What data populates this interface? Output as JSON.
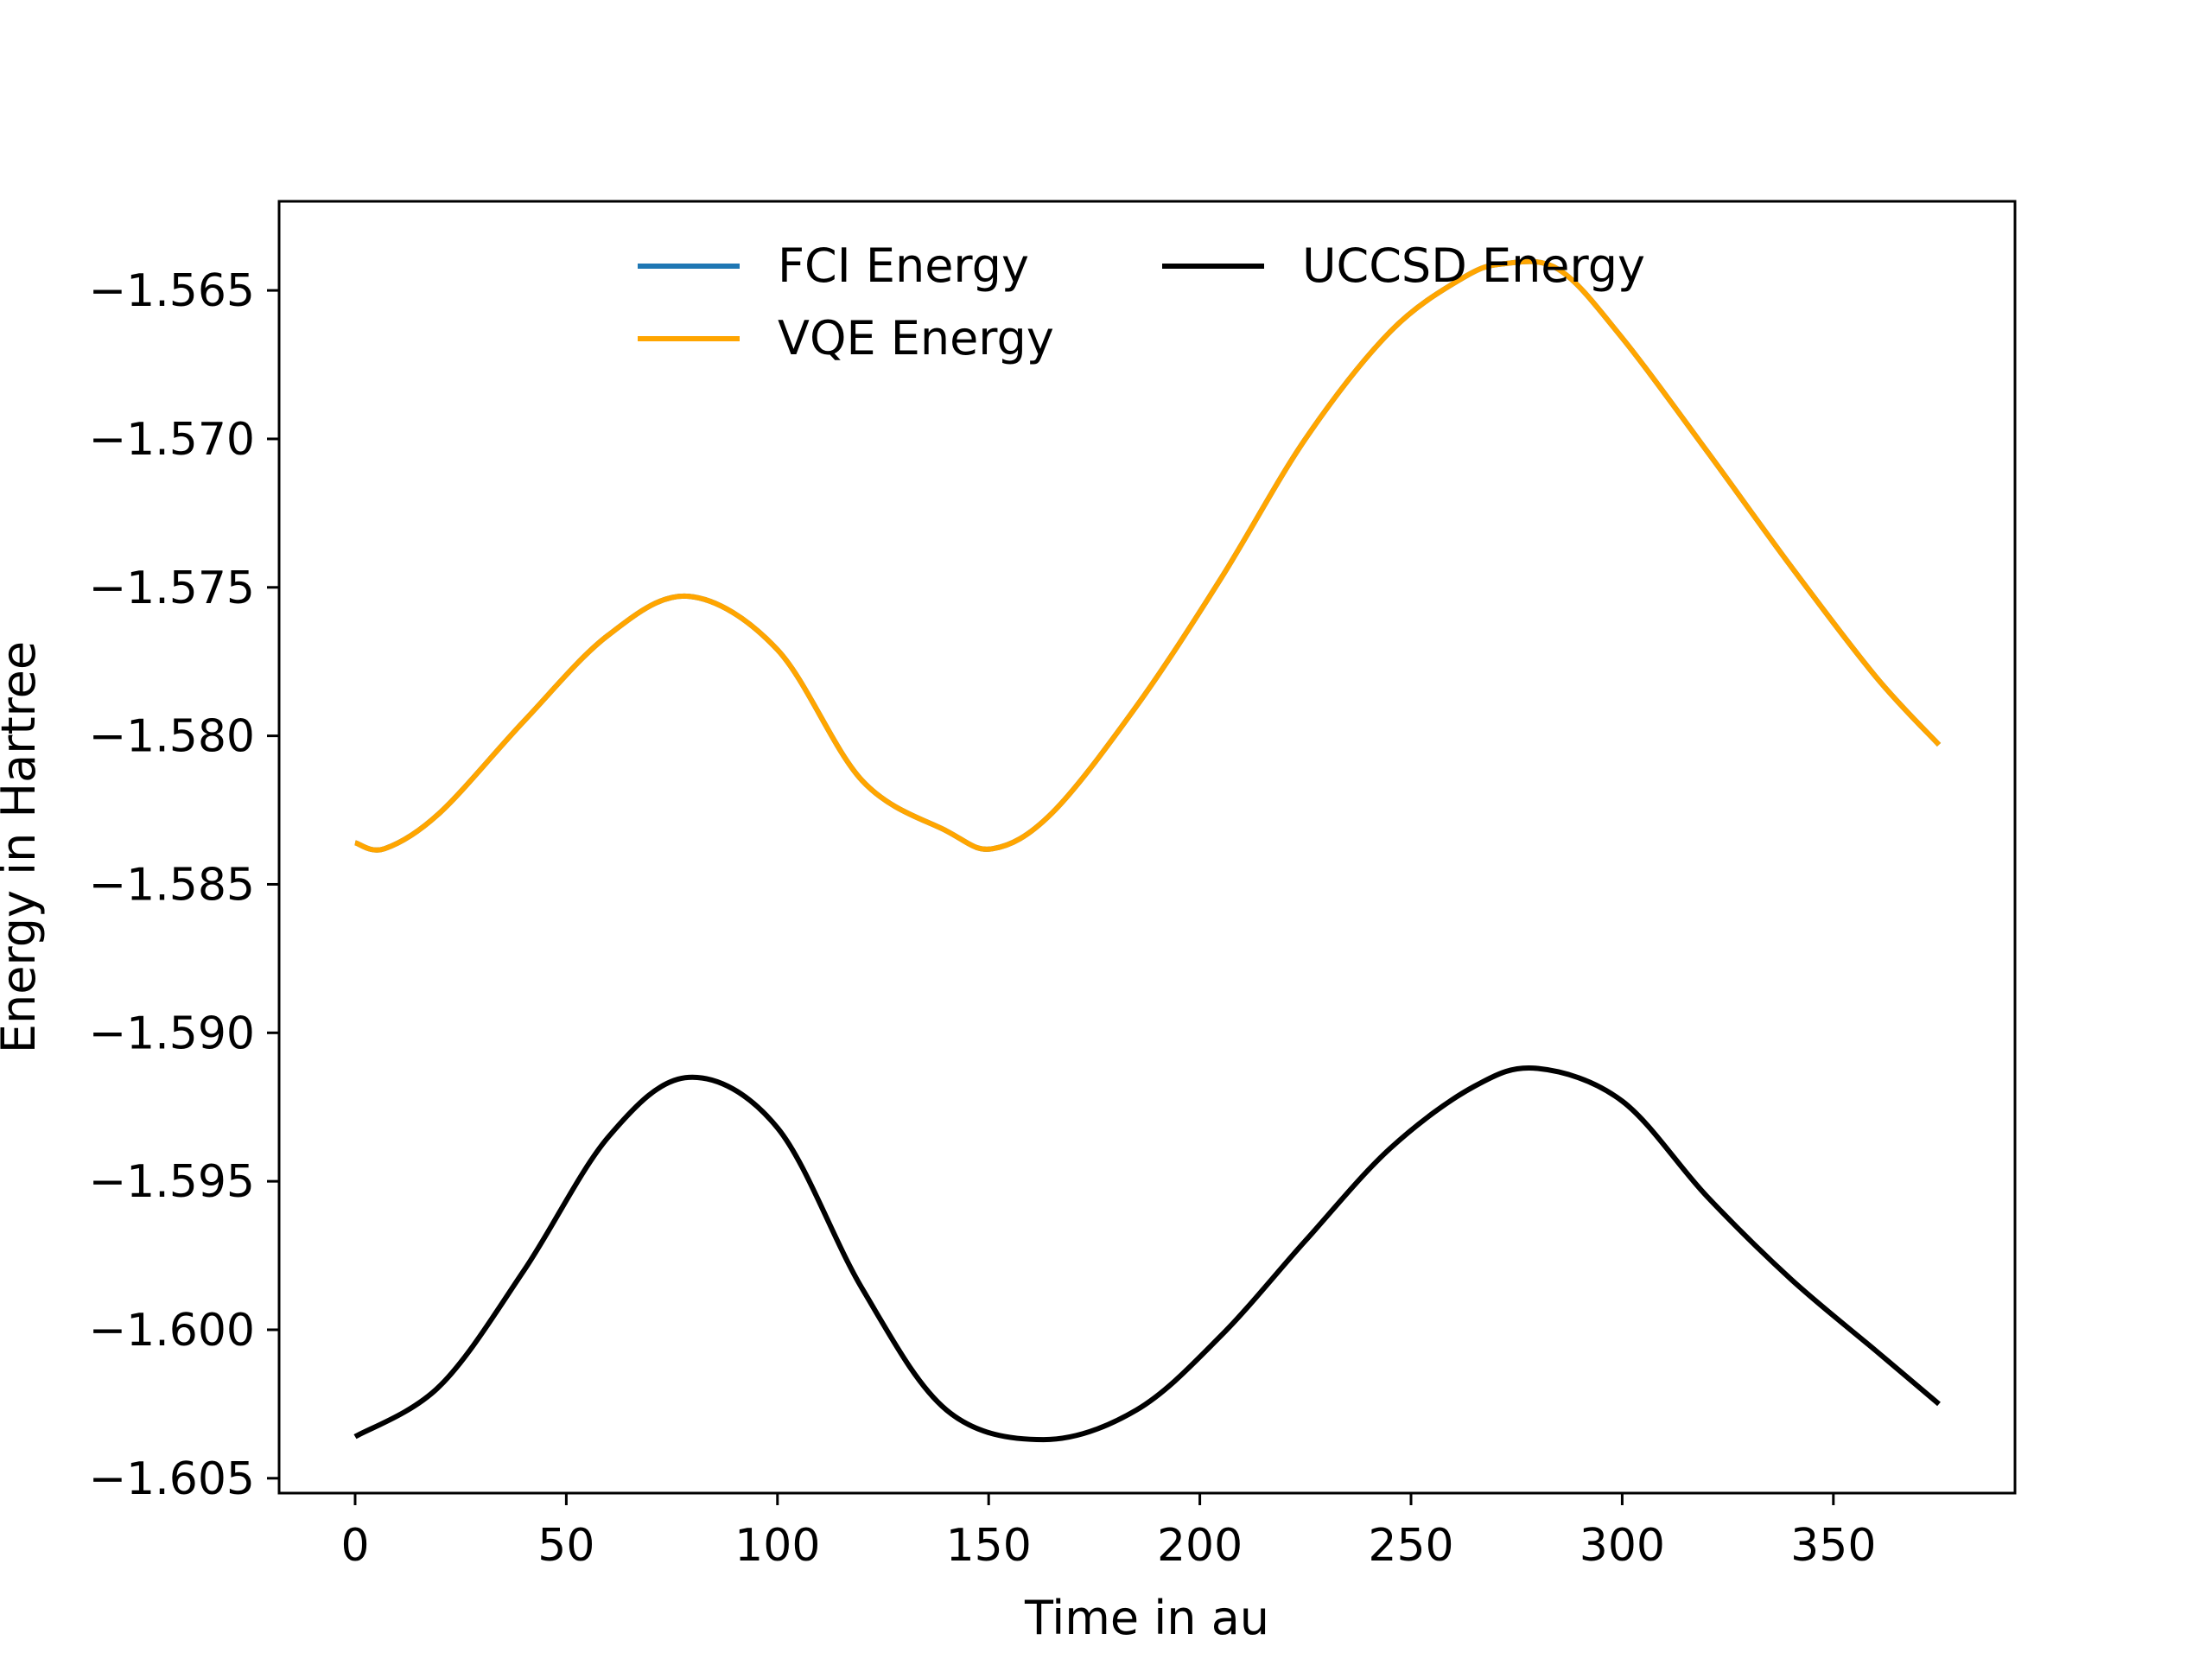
{
  "chart_data": {
    "type": "line",
    "title": "",
    "xlabel": "Time in au",
    "ylabel": "Energy in Hartree",
    "xlim": [
      -18,
      393
    ],
    "ylim": [
      -1.6055,
      -1.562
    ],
    "xticks": [
      0,
      50,
      100,
      150,
      200,
      250,
      300,
      350
    ],
    "xtick_labels": [
      "0",
      "50",
      "100",
      "150",
      "200",
      "250",
      "300",
      "350"
    ],
    "yticks": [
      -1.605,
      -1.6,
      -1.595,
      -1.59,
      -1.585,
      -1.58,
      -1.575,
      -1.57,
      -1.565
    ],
    "ytick_labels": [
      "−1.605",
      "−1.600",
      "−1.595",
      "−1.590",
      "−1.585",
      "−1.580",
      "−1.575",
      "−1.570",
      "−1.565"
    ],
    "grid": false,
    "legend": {
      "placement": "top-center",
      "columns": 2
    },
    "series": [
      {
        "name": "FCI Energy",
        "color": "#1f77b4",
        "x": [
          0,
          7,
          20,
          40,
          60,
          79,
          100,
          120,
          140,
          151,
          165,
          185,
          205,
          225,
          245,
          262,
          272,
          285,
          300,
          320,
          340,
          360,
          375
        ],
        "y": [
          -1.5836,
          -1.5838,
          -1.5826,
          -1.5795,
          -1.5766,
          -1.5753,
          -1.5771,
          -1.5815,
          -1.5832,
          -1.5838,
          -1.5826,
          -1.579,
          -1.5747,
          -1.57,
          -1.5664,
          -1.5646,
          -1.5641,
          -1.5643,
          -1.5666,
          -1.5704,
          -1.5743,
          -1.578,
          -1.5803
        ]
      },
      {
        "name": "VQE Energy",
        "color": "#ffa500",
        "x": [
          0,
          7,
          20,
          40,
          60,
          79,
          100,
          120,
          140,
          151,
          165,
          185,
          205,
          225,
          245,
          262,
          272,
          285,
          300,
          320,
          340,
          360,
          375
        ],
        "y": [
          -1.5836,
          -1.5838,
          -1.5826,
          -1.5795,
          -1.5766,
          -1.5753,
          -1.5771,
          -1.5815,
          -1.5832,
          -1.5838,
          -1.5826,
          -1.579,
          -1.5747,
          -1.57,
          -1.5664,
          -1.5646,
          -1.5641,
          -1.5643,
          -1.5666,
          -1.5704,
          -1.5743,
          -1.578,
          -1.5803
        ]
      },
      {
        "name": "UCCSD Energy",
        "color": "#000000",
        "x": [
          0,
          20,
          40,
          60,
          79,
          100,
          120,
          140,
          163,
          185,
          205,
          225,
          245,
          265,
          280,
          300,
          320,
          340,
          360,
          375
        ],
        "y": [
          -1.6036,
          -1.6019,
          -1.598,
          -1.5935,
          -1.5915,
          -1.5932,
          -1.5986,
          -1.6027,
          -1.6037,
          -1.6027,
          -1.6002,
          -1.597,
          -1.5939,
          -1.5918,
          -1.5912,
          -1.5923,
          -1.5955,
          -1.5983,
          -1.6007,
          -1.6025
        ]
      }
    ]
  }
}
